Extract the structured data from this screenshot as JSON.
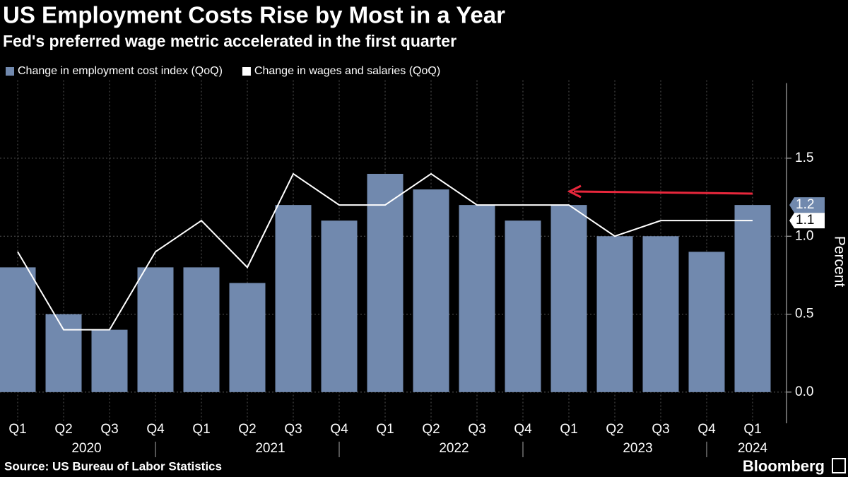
{
  "chart_data": {
    "type": "bar",
    "title": "US Employment Costs Rise by Most in a Year",
    "subtitle": "Fed's preferred wage metric accelerated in the first quarter",
    "categories": [
      "Q1",
      "Q2",
      "Q3",
      "Q4",
      "Q1",
      "Q2",
      "Q3",
      "Q4",
      "Q1",
      "Q2",
      "Q3",
      "Q4",
      "Q1",
      "Q2",
      "Q3",
      "Q4",
      "Q1"
    ],
    "x_groups": [
      "2020",
      "2021",
      "2022",
      "2023",
      "2024"
    ],
    "series": [
      {
        "name": "Change in employment cost index (QoQ)",
        "type": "bar",
        "color": "#7189ae",
        "values": [
          0.8,
          0.5,
          0.4,
          0.8,
          0.8,
          0.7,
          1.2,
          1.1,
          1.4,
          1.3,
          1.2,
          1.1,
          1.2,
          1.0,
          1.0,
          0.9,
          1.2
        ]
      },
      {
        "name": "Change in wages and salaries (QoQ)",
        "type": "line",
        "color": "#ffffff",
        "values": [
          0.9,
          0.4,
          0.4,
          0.9,
          1.1,
          0.8,
          1.4,
          1.2,
          1.2,
          1.4,
          1.2,
          1.2,
          1.2,
          1.0,
          1.1,
          1.1,
          1.1
        ]
      }
    ],
    "ylim": [
      -0.2,
      2.0
    ],
    "yticks": [
      {
        "value": 0,
        "label": "0.0"
      },
      0.5,
      {
        "value": 1,
        "label": "1.0"
      },
      1.5
    ],
    "ylabel": "Percent",
    "grid": true,
    "source": "Source: US Bureau of Labor Statistics",
    "brand": "Bloomberg"
  }
}
